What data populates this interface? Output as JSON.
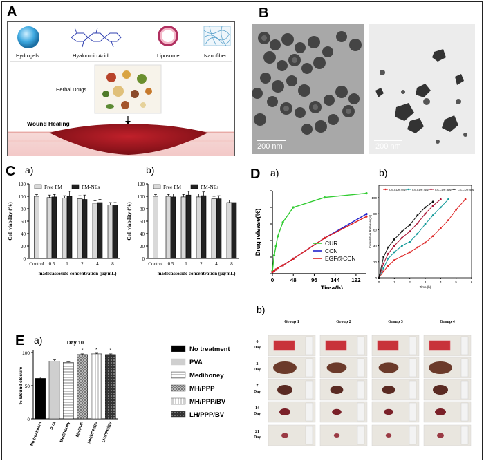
{
  "panels": {
    "A": {
      "label": "A",
      "materials": [
        "Hydrogels",
        "Hyaluronic Acid",
        "Liposome",
        "Nanofiber"
      ],
      "herbal": "Herbal Drugs",
      "wound": "Wound Healing"
    },
    "B": {
      "label": "B",
      "scale_left": "200 nm",
      "scale_right": "200 nm"
    },
    "C": {
      "label": "C",
      "sub_a": "a)",
      "sub_b": "b)"
    },
    "D": {
      "label": "D",
      "sub_a": "a)",
      "sub_b": "b)"
    },
    "E": {
      "label": "E",
      "sub_a": "a)",
      "sub_b": "b)"
    }
  },
  "chart_data": [
    {
      "id": "C-a",
      "type": "bar",
      "ylabel": "Cell viability (%)",
      "xlabel": "madecassoside concentration (μg/mL)",
      "categories": [
        "Control",
        "0.5",
        "1",
        "2",
        "4",
        "8"
      ],
      "ylim": [
        0,
        120
      ],
      "yticks": [
        "0",
        "20",
        "40",
        "60",
        "80",
        "100",
        "120"
      ],
      "legend": [
        "Free PM",
        "PM-NEs"
      ],
      "series": [
        {
          "name": "Free PM",
          "values": [
            100,
            98,
            97,
            96,
            89,
            86
          ],
          "errors": [
            3,
            4,
            4,
            5,
            4,
            4
          ],
          "color": "#d9d9d9"
        },
        {
          "name": "PM-NEs",
          "values": [
            null,
            99,
            100,
            95,
            90,
            86
          ],
          "errors": [
            0,
            4,
            8,
            7,
            5,
            4
          ],
          "color": "#222222"
        }
      ]
    },
    {
      "id": "C-b",
      "type": "bar",
      "ylabel": "Cell viability (%)",
      "xlabel": "madecassoside concentration (μg/mL)",
      "categories": [
        "Control",
        "0.5",
        "1",
        "2",
        "4",
        "8"
      ],
      "ylim": [
        0,
        120
      ],
      "yticks": [
        "0",
        "20",
        "40",
        "60",
        "80",
        "100",
        "120"
      ],
      "legend": [
        "Free PM",
        "PM-NEs"
      ],
      "series": [
        {
          "name": "Free PM",
          "values": [
            100,
            100,
            99,
            99,
            96,
            90
          ],
          "errors": [
            3,
            3,
            4,
            5,
            4,
            4
          ],
          "color": "#d9d9d9"
        },
        {
          "name": "PM-NEs",
          "values": [
            null,
            99,
            102,
            101,
            96,
            90
          ],
          "errors": [
            0,
            5,
            6,
            6,
            5,
            4
          ],
          "color": "#222222"
        }
      ]
    },
    {
      "id": "D-a",
      "type": "line",
      "ylabel": "Drug release(%)",
      "xlabel": "Time(h)",
      "xticks": [
        "0",
        "48",
        "96",
        "144",
        "192"
      ],
      "yticks": [
        "0",
        "20",
        "40",
        "60",
        "80",
        "100"
      ],
      "xlim": [
        0,
        216
      ],
      "ylim": [
        0,
        100
      ],
      "series": [
        {
          "name": "CUR",
          "color": "#33cc33",
          "x": [
            0,
            4,
            8,
            12,
            24,
            48,
            120,
            216
          ],
          "y": [
            3,
            22,
            33,
            45,
            62,
            80,
            92,
            97
          ]
        },
        {
          "name": "CCN",
          "color": "#2222cc",
          "x": [
            0,
            4,
            8,
            12,
            24,
            48,
            120,
            216
          ],
          "y": [
            2,
            3,
            5,
            7,
            10,
            18,
            43,
            72
          ]
        },
        {
          "name": "EGF@CCN",
          "color": "#dd2222",
          "x": [
            0,
            4,
            8,
            12,
            24,
            48,
            120,
            216
          ],
          "y": [
            2,
            3,
            5,
            7,
            10,
            18,
            43,
            69
          ]
        }
      ]
    },
    {
      "id": "D-b",
      "type": "line",
      "ylabel": "Cumulative Release (%)",
      "xlabel": "Time (h)",
      "xticks": [
        "0",
        "1",
        "2",
        "3",
        "4",
        "5",
        "6"
      ],
      "yticks": [
        "0",
        "20",
        "40",
        "60",
        "80",
        "100"
      ],
      "xlim": [
        0,
        6
      ],
      "ylim": [
        0,
        100
      ],
      "legend": [
        "CS-CUR (2w)",
        "CS-CUR (4w)",
        "CS-CUR (6w)",
        "CS-CUR (8w)"
      ],
      "series": [
        {
          "name": "CS-CUR (2w)",
          "color": "#dd2222",
          "x": [
            0,
            0.3,
            0.6,
            1,
            1.5,
            2,
            2.5,
            3,
            3.5,
            4,
            4.5,
            5,
            5.6
          ],
          "y": [
            0,
            8,
            15,
            22,
            27,
            32,
            38,
            44,
            52,
            62,
            72,
            85,
            98
          ]
        },
        {
          "name": "CS-CUR (4w)",
          "color": "#119999",
          "x": [
            0,
            0.3,
            0.6,
            1,
            1.5,
            2,
            2.5,
            3,
            3.5,
            4,
            4.5
          ],
          "y": [
            0,
            12,
            24,
            32,
            40,
            45,
            55,
            67,
            78,
            88,
            98
          ]
        },
        {
          "name": "CS-CUR (6w)",
          "color": "#aa1133",
          "x": [
            0,
            0.3,
            0.6,
            1,
            1.5,
            2,
            2.5,
            3,
            3.5,
            4
          ],
          "y": [
            0,
            18,
            30,
            40,
            50,
            58,
            68,
            80,
            90,
            98
          ]
        },
        {
          "name": "CS-CUR (8w)",
          "color": "#111111",
          "x": [
            0,
            0.3,
            0.6,
            1,
            1.5,
            2,
            2.5,
            3,
            3.5
          ],
          "y": [
            0,
            26,
            38,
            48,
            58,
            66,
            78,
            88,
            95
          ]
        }
      ]
    },
    {
      "id": "E-a",
      "type": "bar",
      "title": "Day 10",
      "ylabel": "% Wound closure",
      "categories": [
        "No treatment",
        "PVA",
        "Medihoney",
        "MH/PPP",
        "MH/PPP/BV",
        "LH/PPP/BV"
      ],
      "ylim": [
        0,
        100
      ],
      "yticks": [
        "0",
        "50",
        "100"
      ],
      "values": [
        61,
        87,
        85,
        97,
        98,
        97
      ],
      "errors": [
        2,
        2,
        1,
        1,
        1,
        1
      ],
      "significance": [
        "",
        "",
        "",
        "*",
        "*",
        "*"
      ],
      "legend": [
        "No treatment",
        "PVA",
        "Medihoney",
        "MH/PPP",
        "MH/PPP/BV",
        "LH/PPP/BV"
      ]
    }
  ],
  "photo_grid": {
    "groups": [
      "Group 1",
      "Group 2",
      "Group 3",
      "Group 4"
    ],
    "days": [
      "0\nDay",
      "3\nDay",
      "7\nDay",
      "14\nDay",
      "21\nDay"
    ],
    "day_labels": [
      [
        "0",
        "Day"
      ],
      [
        "3",
        "Day"
      ],
      [
        "7",
        "Day"
      ],
      [
        "14",
        "Day"
      ],
      [
        "21",
        "Day"
      ]
    ]
  }
}
